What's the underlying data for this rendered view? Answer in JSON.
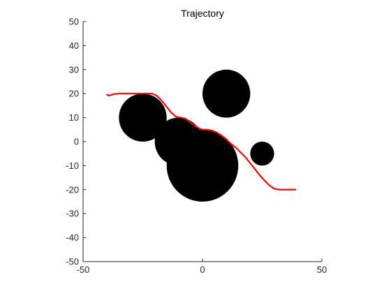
{
  "chart_data": {
    "type": "scatter",
    "title": "Trajectory",
    "xlabel": "",
    "ylabel": "",
    "xlim": [
      -50,
      50
    ],
    "ylim": [
      -50,
      50
    ],
    "x_ticks": [
      -50,
      0,
      50
    ],
    "y_ticks": [
      -50,
      -40,
      -30,
      -20,
      -10,
      0,
      10,
      20,
      30,
      40,
      50
    ],
    "grid": false,
    "aspect": "equal",
    "obstacles": [
      {
        "cx": -25,
        "cy": 10,
        "r": 10
      },
      {
        "cx": 10,
        "cy": 20,
        "r": 10
      },
      {
        "cx": -10,
        "cy": 0,
        "r": 10
      },
      {
        "cx": 0,
        "cy": -10,
        "r": 15
      },
      {
        "cx": 25,
        "cy": -5,
        "r": 5
      }
    ],
    "trajectory": {
      "color": "#ff0000",
      "points": [
        [
          -40,
          19.5
        ],
        [
          -39,
          19.2
        ],
        [
          -38,
          19.5
        ],
        [
          -37,
          19.8
        ],
        [
          -35,
          20
        ],
        [
          -32,
          20
        ],
        [
          -28,
          20
        ],
        [
          -24,
          20
        ],
        [
          -21,
          20
        ],
        [
          -19,
          19
        ],
        [
          -17,
          17
        ],
        [
          -15,
          14.5
        ],
        [
          -13,
          12
        ],
        [
          -11,
          10.3
        ],
        [
          -9,
          10
        ],
        [
          -7,
          9.5
        ],
        [
          -5,
          8
        ],
        [
          -3,
          6.5
        ],
        [
          -1,
          5.3
        ],
        [
          0,
          5
        ],
        [
          2,
          5
        ],
        [
          4,
          4.6
        ],
        [
          6,
          3.8
        ],
        [
          8,
          2.5
        ],
        [
          10,
          1
        ],
        [
          12,
          -1
        ],
        [
          14,
          -2.5
        ],
        [
          16,
          -4.5
        ],
        [
          18,
          -6.5
        ],
        [
          20,
          -9
        ],
        [
          22,
          -11.5
        ],
        [
          24,
          -14
        ],
        [
          26,
          -16.2
        ],
        [
          28,
          -18.2
        ],
        [
          30,
          -19.6
        ],
        [
          32,
          -20
        ],
        [
          35,
          -20
        ],
        [
          39,
          -20
        ]
      ]
    }
  }
}
